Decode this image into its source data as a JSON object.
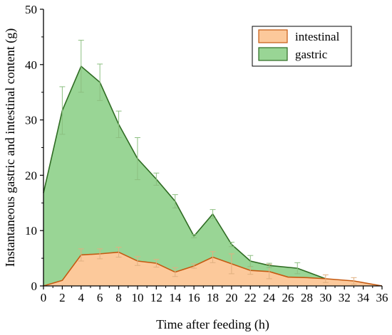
{
  "chart_data": {
    "type": "area",
    "xlabel": "Time after feeding (h)",
    "ylabel": "Instantaneous gastric and intestinal content (g)",
    "xlim": [
      0,
      36
    ],
    "ylim": [
      0,
      50
    ],
    "x_ticks": [
      0,
      2,
      4,
      6,
      8,
      10,
      12,
      14,
      16,
      18,
      20,
      22,
      24,
      26,
      28,
      30,
      32,
      34,
      36
    ],
    "y_ticks": [
      0,
      10,
      20,
      30,
      40,
      50
    ],
    "legend_position": "top-right",
    "series": [
      {
        "name": "intestinal",
        "fill": "#fcc99b",
        "stroke": "#c55a11",
        "errorbar": "#e0b080",
        "points": [
          {
            "x": 0,
            "y": 0.0
          },
          {
            "x": 2,
            "y": 1.0
          },
          {
            "x": 4,
            "y": 5.6,
            "err": 1.1
          },
          {
            "x": 6,
            "y": 5.8,
            "err": 0.9
          },
          {
            "x": 8,
            "y": 6.1,
            "err": 0.9
          },
          {
            "x": 10,
            "y": 4.5,
            "err": 0.8
          },
          {
            "x": 12,
            "y": 4.1,
            "err": 0.7
          },
          {
            "x": 14,
            "y": 2.5,
            "err": 0.8
          },
          {
            "x": 16,
            "y": 3.6,
            "err": 0.4
          },
          {
            "x": 18,
            "y": 5.2,
            "err": 1.0
          },
          {
            "x": 20,
            "y": 4.0,
            "err": 1.8
          },
          {
            "x": 22,
            "y": 2.8,
            "err": 0.7
          },
          {
            "x": 24,
            "y": 2.6,
            "err": 1.3
          },
          {
            "x": 26,
            "y": 1.6
          },
          {
            "x": 28,
            "y": 1.5
          },
          {
            "x": 30,
            "y": 1.3,
            "err": 0.7
          },
          {
            "x": 33,
            "y": 0.9,
            "err": 0.6
          },
          {
            "x": 36,
            "y": 0.0
          }
        ]
      },
      {
        "name": "gastric",
        "fill": "#99d595",
        "stroke": "#2e6b22",
        "errorbar": "#8cbf80",
        "points": [
          {
            "x": 0,
            "y": 16.8
          },
          {
            "x": 2,
            "y": 31.7,
            "err": 4.3
          },
          {
            "x": 4,
            "y": 39.7,
            "err": 4.7
          },
          {
            "x": 6,
            "y": 36.8,
            "err": 3.3
          },
          {
            "x": 8,
            "y": 29.2,
            "err": 2.4
          },
          {
            "x": 10,
            "y": 23.0,
            "err": 3.8
          },
          {
            "x": 12,
            "y": 19.3,
            "err": 1.1
          },
          {
            "x": 14,
            "y": 15.3,
            "err": 1.2
          },
          {
            "x": 16,
            "y": 9.0,
            "err": 0.3
          },
          {
            "x": 18,
            "y": 13.0,
            "err": 0.8
          },
          {
            "x": 20,
            "y": 7.5,
            "err": 0.4
          },
          {
            "x": 22,
            "y": 4.5,
            "err": 1.0
          },
          {
            "x": 24,
            "y": 3.7,
            "err": 0.4
          },
          {
            "x": 27,
            "y": 3.2,
            "err": 1.0
          },
          {
            "x": 30,
            "y": 1.3
          }
        ]
      }
    ]
  }
}
